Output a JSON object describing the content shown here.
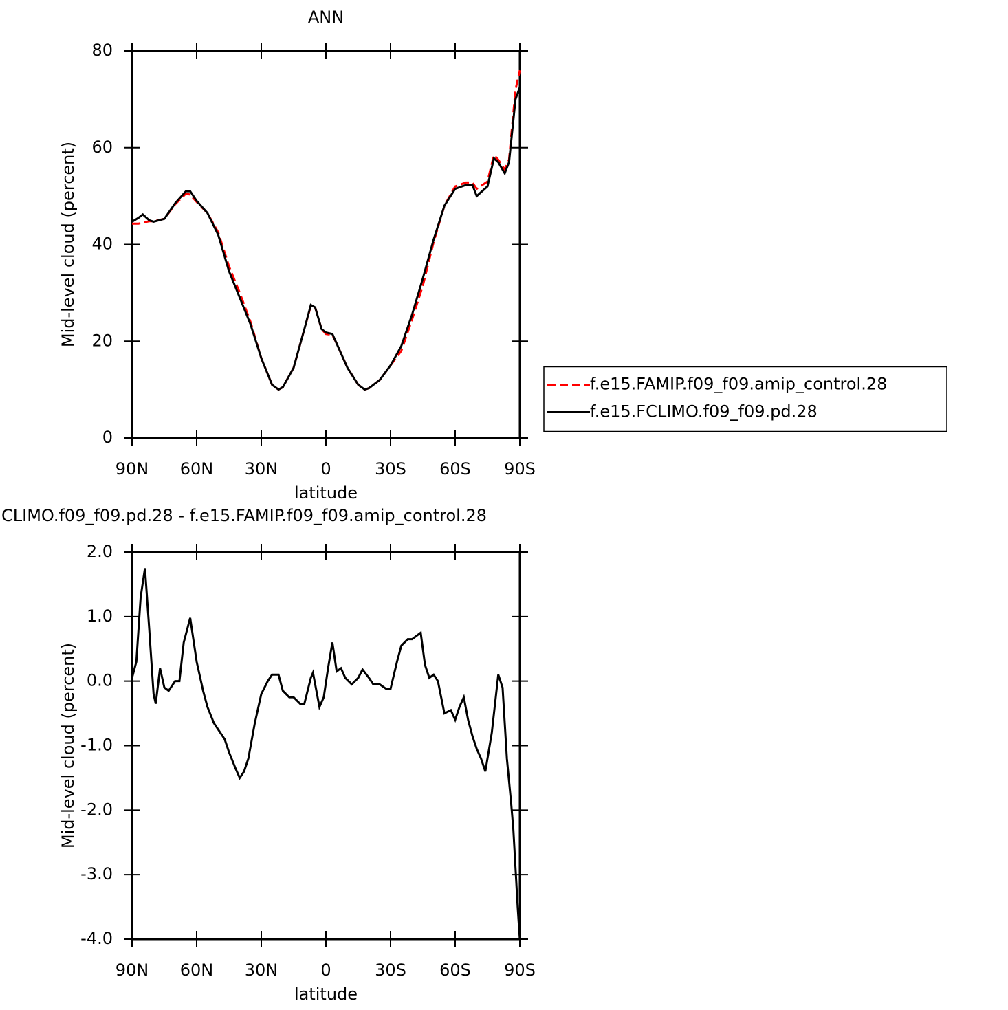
{
  "chart_data": [
    {
      "type": "line",
      "title": "ANN",
      "xlabel": "latitude",
      "ylabel": "Mid-level cloud (percent)",
      "x": [
        90,
        87,
        85,
        82,
        80,
        75,
        70,
        65,
        63,
        60,
        55,
        50,
        45,
        40,
        35,
        30,
        25,
        22,
        20,
        15,
        10,
        7,
        5,
        2,
        0,
        -3,
        -5,
        -10,
        -15,
        -18,
        -20,
        -25,
        -30,
        -35,
        -40,
        -45,
        -50,
        -55,
        -60,
        -65,
        -68,
        -70,
        -75,
        -78,
        -80,
        -83,
        -85,
        -88,
        -90
      ],
      "series": [
        {
          "name": "f.e15.FAMIP.f09_f09.amip_control.28",
          "color": "#ff0000",
          "dash": "dashed",
          "values": [
            44.3,
            44.3,
            44.5,
            44.8,
            44.8,
            45.3,
            48.3,
            50.5,
            50.3,
            48.8,
            46.5,
            42.5,
            35.5,
            30,
            24,
            16.5,
            11,
            10,
            10.5,
            14.5,
            22.5,
            27.3,
            27,
            22.5,
            21.5,
            21.3,
            19.5,
            14.5,
            11,
            10,
            10.3,
            12,
            15,
            18,
            24.5,
            31.5,
            40.5,
            48,
            52,
            52.8,
            52.8,
            51.5,
            53,
            58.5,
            57.5,
            55.5,
            57.5,
            72,
            76
          ]
        },
        {
          "name": "f.e15.FCLIMO.f09_f09.pd.28",
          "color": "#000000",
          "dash": "solid",
          "values": [
            44.7,
            45.5,
            46.2,
            45,
            44.7,
            45.3,
            48.5,
            51,
            51,
            49,
            46.5,
            42,
            34.5,
            29,
            23.5,
            16.5,
            11,
            10,
            10.5,
            14.5,
            22.5,
            27.5,
            27,
            22.5,
            21.8,
            21.5,
            19.5,
            14.5,
            11,
            10,
            10.3,
            12,
            15,
            19,
            25.5,
            33,
            41,
            48,
            51.5,
            52.3,
            52.3,
            50,
            52,
            57.8,
            57,
            54.7,
            57,
            70,
            72.5
          ]
        }
      ],
      "xlim": [
        90,
        -90
      ],
      "xticks": [
        {
          "value": 90,
          "label": "90N"
        },
        {
          "value": 60,
          "label": "60N"
        },
        {
          "value": 30,
          "label": "30N"
        },
        0,
        {
          "value": -30,
          "label": "30S"
        },
        {
          "value": -60,
          "label": "60S"
        },
        {
          "value": -90,
          "label": "90S"
        }
      ],
      "ylim": [
        0,
        80
      ],
      "yticks": [
        0,
        20,
        40,
        60,
        80
      ],
      "legend": "right"
    },
    {
      "type": "line",
      "title": "CLIMO.f09_f09.pd.28 - f.e15.FAMIP.f09_f09.amip_control.28",
      "xlabel": "latitude",
      "ylabel": "Mid-level cloud (percent)",
      "x": [
        90,
        88,
        86,
        84,
        82,
        80,
        79,
        77,
        75,
        73,
        70,
        68,
        66,
        63,
        60,
        57,
        55,
        52,
        50,
        47,
        45,
        42,
        40,
        38,
        36,
        33,
        30,
        27,
        25,
        22,
        20,
        17,
        15,
        12,
        10,
        7,
        6,
        3,
        1,
        -1,
        -3,
        -5,
        -7,
        -9,
        -12,
        -15,
        -17,
        -20,
        -22,
        -25,
        -28,
        -30,
        -33,
        -35,
        -38,
        -40,
        -42,
        -44,
        -46,
        -48,
        -50,
        -52,
        -55,
        -58,
        -60,
        -62,
        -64,
        -66,
        -68,
        -70,
        -72,
        -74,
        -77,
        -80,
        -82,
        -84,
        -86,
        -87,
        -89,
        -90
      ],
      "series": [
        {
          "color": "#000000",
          "dash": "solid",
          "values": [
            0.05,
            0.3,
            1.3,
            1.75,
            0.8,
            -0.2,
            -0.35,
            0.2,
            -0.1,
            -0.15,
            0.0,
            0.0,
            0.6,
            0.98,
            0.3,
            -0.15,
            -0.4,
            -0.65,
            -0.75,
            -0.9,
            -1.1,
            -1.35,
            -1.5,
            -1.4,
            -1.2,
            -0.65,
            -0.2,
            0.0,
            0.1,
            0.1,
            -0.15,
            -0.25,
            -0.25,
            -0.35,
            -0.35,
            0.05,
            0.13,
            -0.4,
            -0.25,
            0.2,
            0.6,
            0.15,
            0.2,
            0.05,
            -0.05,
            0.05,
            0.18,
            0.05,
            -0.05,
            -0.05,
            -0.12,
            -0.12,
            0.3,
            0.55,
            0.65,
            0.65,
            0.7,
            0.75,
            0.25,
            0.05,
            0.1,
            0.0,
            -0.5,
            -0.45,
            -0.6,
            -0.4,
            -0.25,
            -0.6,
            -0.85,
            -1.05,
            -1.2,
            -1.4,
            -0.8,
            0.1,
            -0.1,
            -1.2,
            -1.9,
            -2.3,
            -3.5,
            -4.0
          ]
        }
      ],
      "xlim": [
        90,
        -90
      ],
      "xticks": [
        {
          "value": 90,
          "label": "90N"
        },
        {
          "value": 60,
          "label": "60N"
        },
        {
          "value": 30,
          "label": "30N"
        },
        0,
        {
          "value": -30,
          "label": "30S"
        },
        {
          "value": -60,
          "label": "60S"
        },
        {
          "value": -90,
          "label": "90S"
        }
      ],
      "ylim": [
        -4.0,
        2.0
      ],
      "yticks": [
        {
          "value": -4.0,
          "label": "-4.0"
        },
        {
          "value": -3.0,
          "label": "-3.0"
        },
        {
          "value": -2.0,
          "label": "-2.0"
        },
        {
          "value": -1.0,
          "label": "-1.0"
        },
        {
          "value": 0.0,
          "label": "0.0"
        },
        {
          "value": 1.0,
          "label": "1.0"
        },
        {
          "value": 2.0,
          "label": "2.0"
        }
      ]
    }
  ]
}
